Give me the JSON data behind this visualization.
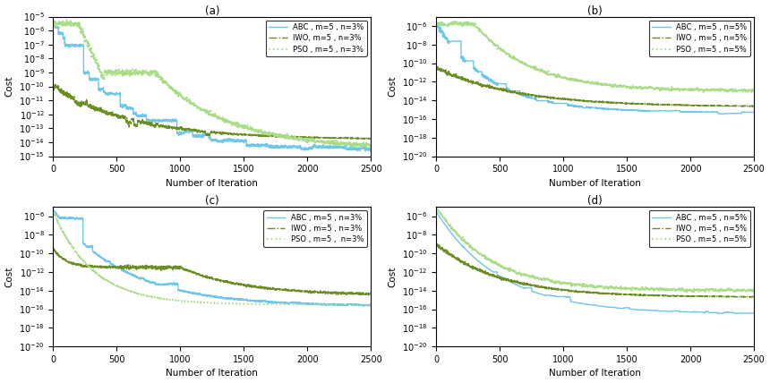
{
  "subplots": [
    {
      "title": "(a)",
      "legend_labels": [
        "ABC , m=5 , n=3%",
        "IWO, m=5 , n=3%",
        "PSO , m=5 , n=3%"
      ],
      "ylim_log": [
        -15,
        -5
      ],
      "xlim": [
        0,
        2500
      ]
    },
    {
      "title": "(b)",
      "legend_labels": [
        "ABC , m=5 , n=5%",
        "IWO , m=5 , n=5%",
        "PSO , m=5 , n=5%"
      ],
      "ylim_log": [
        -20,
        -5
      ],
      "xlim": [
        0,
        2500
      ]
    },
    {
      "title": "(c)",
      "legend_labels": [
        "ABC , m=5 , n=3%",
        "IWO , m=5 , n=3%",
        "PSO , m=5 ,  n=3%"
      ],
      "ylim_log": [
        -20,
        -5
      ],
      "xlim": [
        0,
        2500
      ]
    },
    {
      "title": "(d)",
      "legend_labels": [
        "ABC , m=5 , n=5%",
        "IWO , m=5 , n=5%",
        "PSO , m=5 , n=5%"
      ],
      "ylim_log": [
        -20,
        -5
      ],
      "xlim": [
        0,
        2500
      ]
    }
  ],
  "abc_color": "#6EC6EA",
  "iwo_color": "#6B8E23",
  "pso_color": "#AADD88",
  "xlabel": "Number of Iteration",
  "ylabel": "Cost",
  "figsize": [
    8.6,
    4.28
  ],
  "dpi": 100
}
